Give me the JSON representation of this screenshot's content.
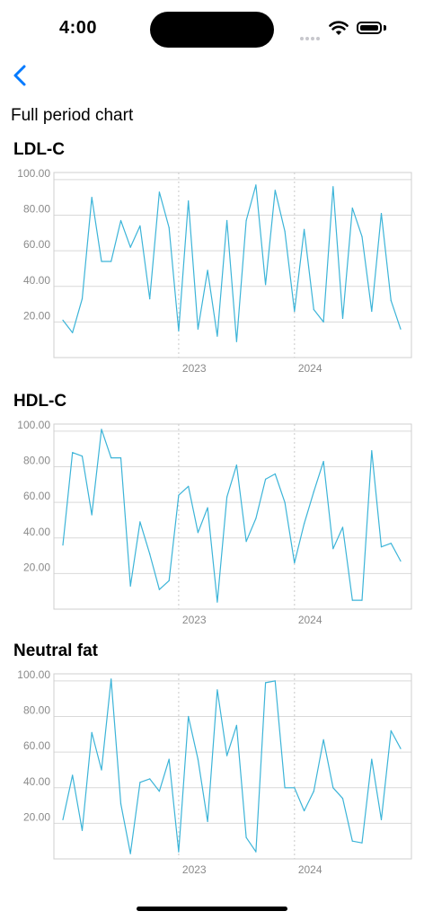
{
  "status_bar": {
    "time": "4:00"
  },
  "header": {
    "back_icon": "chevron-left-icon",
    "title": "Full period chart"
  },
  "colors": {
    "accent": "#007aff",
    "series": "#3cb4d8",
    "grid": "#d9d9d9",
    "axis_text": "#8a8a8a"
  },
  "chart_data": [
    {
      "type": "line",
      "title": "LDL-C",
      "ylim": [
        0,
        104
      ],
      "yticks": [
        20,
        40,
        60,
        80,
        100
      ],
      "ytick_labels": [
        "20.00",
        "40.00",
        "60.00",
        "80.00",
        "100.00"
      ],
      "xticks": [
        {
          "label": "2023",
          "index": 12
        },
        {
          "label": "2024",
          "index": 24
        }
      ],
      "grid": true,
      "series": [
        {
          "values": [
            21,
            14,
            33,
            90,
            54,
            54,
            77,
            62,
            74,
            33,
            93,
            73,
            15,
            88,
            16,
            49,
            12,
            77,
            9,
            77,
            97,
            41,
            94,
            71,
            26,
            72,
            27,
            20,
            96,
            22,
            84,
            68,
            26,
            81,
            32,
            16
          ]
        }
      ]
    },
    {
      "type": "line",
      "title": "HDL-C",
      "ylim": [
        0,
        104
      ],
      "yticks": [
        20,
        40,
        60,
        80,
        100
      ],
      "ytick_labels": [
        "20.00",
        "40.00",
        "60.00",
        "80.00",
        "100.00"
      ],
      "xticks": [
        {
          "label": "2023",
          "index": 12
        },
        {
          "label": "2024",
          "index": 24
        }
      ],
      "grid": true,
      "series": [
        {
          "values": [
            36,
            88,
            86,
            53,
            101,
            85,
            85,
            13,
            49,
            31,
            11,
            16,
            64,
            69,
            43,
            57,
            4,
            63,
            81,
            38,
            51,
            73,
            76,
            60,
            26,
            48,
            66,
            83,
            34,
            46,
            5,
            5,
            89,
            35,
            37,
            27
          ]
        }
      ]
    },
    {
      "type": "line",
      "title": "Neutral fat",
      "ylim": [
        0,
        104
      ],
      "yticks": [
        20,
        40,
        60,
        80,
        100
      ],
      "ytick_labels": [
        "20.00",
        "40.00",
        "60.00",
        "80.00",
        "100.00"
      ],
      "xticks": [
        {
          "label": "2023",
          "index": 12
        },
        {
          "label": "2024",
          "index": 24
        }
      ],
      "grid": true,
      "series": [
        {
          "values": [
            22,
            47,
            16,
            71,
            50,
            101,
            31,
            3,
            43,
            45,
            38,
            56,
            4,
            80,
            56,
            21,
            95,
            58,
            75,
            12,
            4,
            99,
            100,
            40,
            40,
            27,
            38,
            67,
            40,
            34,
            10,
            9,
            56,
            22,
            72,
            62
          ]
        }
      ]
    }
  ]
}
